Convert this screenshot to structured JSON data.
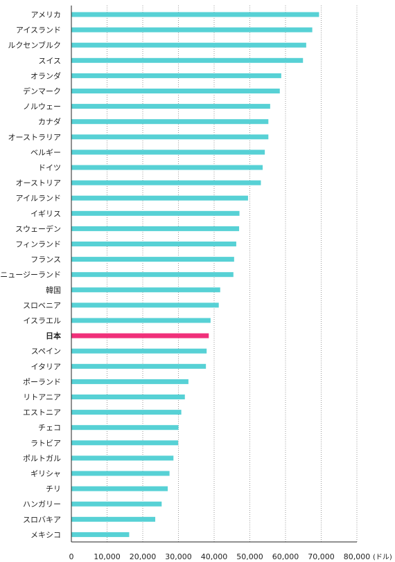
{
  "chart_data": {
    "type": "bar",
    "orientation": "horizontal",
    "title": "",
    "xlabel": "",
    "ylabel": "",
    "unit": "(ドル)",
    "xlim": [
      0,
      80000
    ],
    "xticks": [
      "0",
      "10,000",
      "20,000",
      "30,000",
      "40,000",
      "50,000",
      "60,000",
      "70,000",
      "80,000"
    ],
    "grid": "vertical dotted",
    "categories": [
      "アメリカ",
      "アイスランド",
      "ルクセンブルク",
      "スイス",
      "オランダ",
      "デンマーク",
      "ノルウェー",
      "カナダ",
      "オーストラリア",
      "ベルギー",
      "ドイツ",
      "オーストリア",
      "アイルランド",
      "イギリス",
      "スウェーデン",
      "フィンランド",
      "フランス",
      "ニュージーランド",
      "韓国",
      "スロベニア",
      "イスラエル",
      "日本",
      "スペイン",
      "イタリア",
      "ポーランド",
      "リトアニア",
      "エストニア",
      "チェコ",
      "ラトビア",
      "ポルトガル",
      "ギリシャ",
      "チリ",
      "ハンガリー",
      "スロバキア",
      "メキシコ"
    ],
    "values": [
      69400,
      67500,
      65800,
      64900,
      58800,
      58400,
      55700,
      55200,
      55200,
      54200,
      53600,
      53100,
      49500,
      47100,
      47000,
      46200,
      45600,
      45400,
      41700,
      41300,
      39000,
      38500,
      37900,
      37700,
      32800,
      31800,
      30800,
      30000,
      29900,
      28600,
      27500,
      27000,
      25300,
      23500,
      16200
    ],
    "highlight": "日本",
    "colors": {
      "bar": "#57D1D5",
      "highlight": "#F0307A",
      "grid": "#999999",
      "axis": "#222222"
    }
  }
}
